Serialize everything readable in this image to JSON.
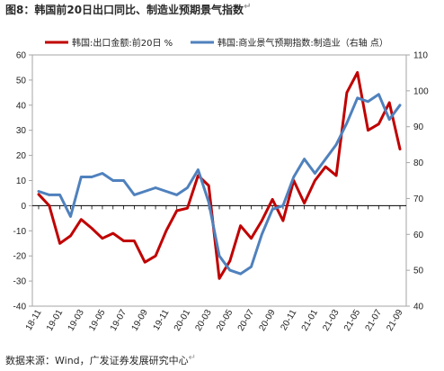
{
  "figure": {
    "title": "图8：韩国前20日出口同比、制造业预期景气指数",
    "source": "数据来源：Wind，广发证券发展研究中心",
    "return_mark": "↵"
  },
  "chart_data": {
    "type": "line",
    "x": [
      "18-11",
      "18-12",
      "19-01",
      "19-02",
      "19-03",
      "19-04",
      "19-05",
      "19-06",
      "19-07",
      "19-08",
      "19-09",
      "19-10",
      "19-11",
      "19-12",
      "20-01",
      "20-02",
      "20-03",
      "20-04",
      "20-05",
      "20-06",
      "20-07",
      "20-08",
      "20-09",
      "20-10",
      "20-11",
      "20-12",
      "21-01",
      "21-02",
      "21-03",
      "21-04",
      "21-05",
      "21-06",
      "21-07",
      "21-08",
      "21-09"
    ],
    "x_tick_labels": [
      "18-11",
      "19-01",
      "19-03",
      "19-05",
      "19-07",
      "19-09",
      "19-11",
      "20-01",
      "20-03",
      "20-05",
      "20-07",
      "20-09",
      "20-11",
      "21-01",
      "21-03",
      "21-05",
      "21-07",
      "21-09"
    ],
    "series": [
      {
        "name": "韩国:出口金额:前20日 %",
        "axis": "left",
        "color": "#c00000",
        "values": [
          4.5,
          0,
          -15,
          -12,
          -5.5,
          -9,
          -13,
          -11,
          -14,
          -14,
          -22.5,
          -20,
          -10,
          -2,
          -1,
          12,
          8,
          -29,
          -22,
          -8,
          -13,
          -6,
          2.5,
          -6,
          10,
          1,
          10,
          15.5,
          12,
          45,
          53,
          30,
          32.5,
          41,
          22.5
        ]
      },
      {
        "name": "韩国:商业景气预期指数:制造业（右轴 点）",
        "axis": "right",
        "color": "#4f81bd",
        "values": [
          72,
          71,
          71,
          65,
          76,
          76,
          77,
          75,
          75,
          71,
          72,
          73,
          72,
          71,
          73,
          78,
          69,
          54,
          50,
          49,
          51,
          60,
          67,
          68,
          76,
          81,
          77,
          81,
          85,
          91,
          98,
          97,
          99,
          92,
          96
        ]
      }
    ],
    "y_left": {
      "min": -40,
      "max": 60,
      "ticks": [
        -40,
        -30,
        -20,
        -10,
        0,
        10,
        20,
        30,
        40,
        50,
        60
      ]
    },
    "y_right": {
      "min": 40,
      "max": 110,
      "ticks": [
        40,
        50,
        60,
        70,
        80,
        90,
        100,
        110
      ]
    },
    "grid": false,
    "legend_position": "top"
  }
}
